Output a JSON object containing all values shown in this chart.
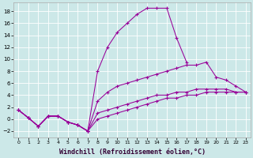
{
  "background_color": "#cce8e8",
  "grid_color": "#b0d0d0",
  "line_color": "#990099",
  "xlabel": "Windchill (Refroidissement éolien,°C)",
  "xlabel_fontsize": 6.0,
  "xlim": [
    -0.5,
    23.5
  ],
  "ylim": [
    -3.0,
    19.5
  ],
  "yticks": [
    -2,
    0,
    2,
    4,
    6,
    8,
    10,
    12,
    14,
    16,
    18
  ],
  "xticks": [
    0,
    1,
    2,
    3,
    4,
    5,
    6,
    7,
    8,
    9,
    10,
    11,
    12,
    13,
    14,
    15,
    16,
    17,
    18,
    19,
    20,
    21,
    22,
    23
  ],
  "series": [
    {
      "x": [
        0,
        1,
        2,
        3,
        4,
        5,
        6,
        7,
        8,
        9,
        10,
        11,
        12,
        13,
        14,
        15,
        16,
        17
      ],
      "y": [
        1.5,
        0.2,
        -1.2,
        0.5,
        0.5,
        -0.5,
        -1.0,
        -2.0,
        8.0,
        12.0,
        14.5,
        16.0,
        17.5,
        18.5,
        18.5,
        18.5,
        13.5,
        9.5
      ]
    },
    {
      "x": [
        0,
        1,
        2,
        3,
        4,
        5,
        6,
        7,
        8,
        9,
        10,
        11,
        12,
        13,
        14,
        15,
        16,
        17,
        18,
        19,
        20,
        21,
        22,
        23
      ],
      "y": [
        1.5,
        0.2,
        -1.2,
        0.5,
        0.5,
        -0.5,
        -1.0,
        -2.0,
        3.0,
        4.5,
        5.5,
        6.0,
        6.5,
        7.0,
        7.5,
        8.0,
        8.5,
        9.0,
        9.0,
        9.5,
        7.0,
        6.5,
        5.5,
        4.5
      ]
    },
    {
      "x": [
        0,
        1,
        2,
        3,
        4,
        5,
        6,
        7,
        8,
        9,
        10,
        11,
        12,
        13,
        14,
        15,
        16,
        17,
        18,
        19,
        20,
        21,
        22,
        23
      ],
      "y": [
        1.5,
        0.2,
        -1.2,
        0.5,
        0.5,
        -0.5,
        -1.0,
        -2.0,
        1.0,
        1.5,
        2.0,
        2.5,
        3.0,
        3.5,
        4.0,
        4.0,
        4.5,
        4.5,
        5.0,
        5.0,
        5.0,
        5.0,
        4.5,
        4.5
      ]
    },
    {
      "x": [
        0,
        1,
        2,
        3,
        4,
        5,
        6,
        7,
        8,
        9,
        10,
        11,
        12,
        13,
        14,
        15,
        16,
        17,
        18,
        19,
        20,
        21,
        22,
        23
      ],
      "y": [
        1.5,
        0.2,
        -1.2,
        0.5,
        0.5,
        -0.5,
        -1.0,
        -2.0,
        0.0,
        0.5,
        1.0,
        1.5,
        2.0,
        2.5,
        3.0,
        3.5,
        3.5,
        4.0,
        4.0,
        4.5,
        4.5,
        4.5,
        4.5,
        4.5
      ]
    }
  ]
}
